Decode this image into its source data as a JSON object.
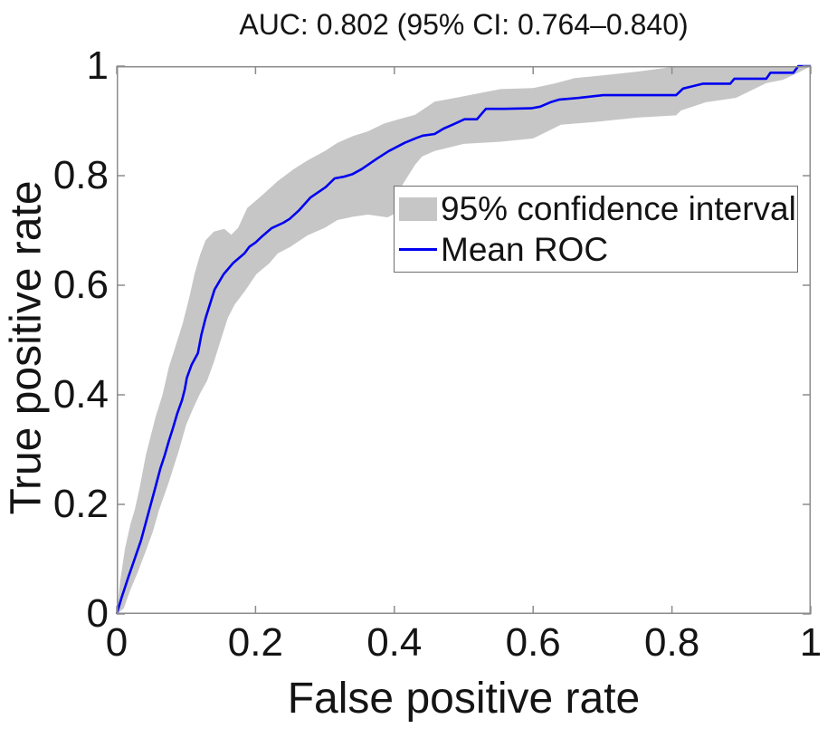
{
  "colors": {
    "band": "#c6c6c6",
    "mean_line": "#0000f0",
    "axis": "#8c8c8c",
    "text": "#141414",
    "legend_border": "#6e6e6e",
    "background": "#ffffff"
  },
  "legend": {
    "position": "upper-center-right-inside",
    "items": [
      {
        "label": "95% confidence interval",
        "swatch": "band"
      },
      {
        "label": "Mean ROC",
        "swatch": "line"
      }
    ]
  },
  "chart_data": {
    "type": "line",
    "title": "AUC: 0.802 (95% CI: 0.764–0.840)",
    "auc": 0.802,
    "ci95": [
      0.764,
      0.84
    ],
    "xlabel": "False positive rate",
    "ylabel": "True positive rate",
    "xlim": [
      0,
      1
    ],
    "ylim": [
      0,
      1
    ],
    "xticks": [
      0,
      0.2,
      0.4,
      0.6,
      0.8,
      1
    ],
    "yticks": [
      0,
      0.2,
      0.4,
      0.6,
      0.8,
      1
    ],
    "xtick_labels": [
      "0",
      "0.2",
      "0.4",
      "0.6",
      "0.8",
      "1"
    ],
    "ytick_labels": [
      "0",
      "0.2",
      "0.4",
      "0.6",
      "0.8",
      "1"
    ],
    "grid": false,
    "box": true,
    "series": [
      {
        "name": "95% confidence interval",
        "type": "band",
        "color": "#c6c6c6",
        "upper": [
          [
            0,
            0
          ],
          [
            0.005,
            0.06
          ],
          [
            0.012,
            0.12
          ],
          [
            0.02,
            0.165
          ],
          [
            0.026,
            0.19
          ],
          [
            0.033,
            0.23
          ],
          [
            0.042,
            0.29
          ],
          [
            0.05,
            0.33
          ],
          [
            0.056,
            0.36
          ],
          [
            0.066,
            0.4
          ],
          [
            0.075,
            0.45
          ],
          [
            0.085,
            0.49
          ],
          [
            0.095,
            0.53
          ],
          [
            0.105,
            0.58
          ],
          [
            0.112,
            0.62
          ],
          [
            0.12,
            0.655
          ],
          [
            0.128,
            0.682
          ],
          [
            0.14,
            0.698
          ],
          [
            0.155,
            0.703
          ],
          [
            0.165,
            0.692
          ],
          [
            0.175,
            0.705
          ],
          [
            0.188,
            0.741
          ],
          [
            0.21,
            0.765
          ],
          [
            0.232,
            0.79
          ],
          [
            0.255,
            0.812
          ],
          [
            0.275,
            0.828
          ],
          [
            0.3,
            0.845
          ],
          [
            0.318,
            0.86
          ],
          [
            0.34,
            0.872
          ],
          [
            0.362,
            0.881
          ],
          [
            0.385,
            0.895
          ],
          [
            0.406,
            0.903
          ],
          [
            0.43,
            0.911
          ],
          [
            0.458,
            0.935
          ],
          [
            0.5,
            0.945
          ],
          [
            0.553,
            0.958
          ],
          [
            0.6,
            0.96
          ],
          [
            0.63,
            0.968
          ],
          [
            0.66,
            0.978
          ],
          [
            0.7,
            0.983
          ],
          [
            0.75,
            0.99
          ],
          [
            0.81,
            1
          ],
          [
            1,
            1
          ]
        ],
        "lower": [
          [
            0,
            0
          ],
          [
            0.01,
            0.01
          ],
          [
            0.02,
            0.045
          ],
          [
            0.03,
            0.075
          ],
          [
            0.042,
            0.115
          ],
          [
            0.052,
            0.15
          ],
          [
            0.061,
            0.19
          ],
          [
            0.075,
            0.24
          ],
          [
            0.09,
            0.3
          ],
          [
            0.1,
            0.345
          ],
          [
            0.11,
            0.375
          ],
          [
            0.12,
            0.402
          ],
          [
            0.13,
            0.425
          ],
          [
            0.14,
            0.46
          ],
          [
            0.15,
            0.5
          ],
          [
            0.16,
            0.54
          ],
          [
            0.17,
            0.565
          ],
          [
            0.185,
            0.59
          ],
          [
            0.201,
            0.62
          ],
          [
            0.22,
            0.64
          ],
          [
            0.232,
            0.658
          ],
          [
            0.25,
            0.67
          ],
          [
            0.275,
            0.691
          ],
          [
            0.3,
            0.705
          ],
          [
            0.318,
            0.719
          ],
          [
            0.34,
            0.725
          ],
          [
            0.362,
            0.729
          ],
          [
            0.39,
            0.724
          ],
          [
            0.4,
            0.73
          ],
          [
            0.41,
            0.78
          ],
          [
            0.43,
            0.82
          ],
          [
            0.44,
            0.835
          ],
          [
            0.458,
            0.845
          ],
          [
            0.5,
            0.858
          ],
          [
            0.553,
            0.862
          ],
          [
            0.6,
            0.868
          ],
          [
            0.64,
            0.893
          ],
          [
            0.688,
            0.898
          ],
          [
            0.75,
            0.906
          ],
          [
            0.806,
            0.91
          ],
          [
            0.813,
            0.919
          ],
          [
            0.849,
            0.934
          ],
          [
            0.892,
            0.942
          ],
          [
            0.936,
            0.969
          ],
          [
            0.96,
            0.975
          ],
          [
            0.982,
            0.988
          ],
          [
            1,
            1
          ]
        ]
      },
      {
        "name": "Mean ROC",
        "type": "line",
        "color": "#0000f0",
        "points": [
          [
            0,
            0
          ],
          [
            0.007,
            0.03
          ],
          [
            0.017,
            0.068
          ],
          [
            0.026,
            0.101
          ],
          [
            0.035,
            0.134
          ],
          [
            0.042,
            0.167
          ],
          [
            0.048,
            0.195
          ],
          [
            0.055,
            0.228
          ],
          [
            0.063,
            0.266
          ],
          [
            0.069,
            0.289
          ],
          [
            0.075,
            0.315
          ],
          [
            0.081,
            0.339
          ],
          [
            0.087,
            0.365
          ],
          [
            0.094,
            0.39
          ],
          [
            0.098,
            0.41
          ],
          [
            0.101,
            0.431
          ],
          [
            0.108,
            0.455
          ],
          [
            0.117,
            0.476
          ],
          [
            0.122,
            0.51
          ],
          [
            0.128,
            0.54
          ],
          [
            0.133,
            0.56
          ],
          [
            0.141,
            0.592
          ],
          [
            0.154,
            0.62
          ],
          [
            0.168,
            0.641
          ],
          [
            0.184,
            0.658
          ],
          [
            0.191,
            0.67
          ],
          [
            0.2,
            0.678
          ],
          [
            0.21,
            0.69
          ],
          [
            0.223,
            0.704
          ],
          [
            0.24,
            0.714
          ],
          [
            0.249,
            0.721
          ],
          [
            0.262,
            0.736
          ],
          [
            0.279,
            0.76
          ],
          [
            0.301,
            0.779
          ],
          [
            0.314,
            0.795
          ],
          [
            0.327,
            0.798
          ],
          [
            0.34,
            0.803
          ],
          [
            0.353,
            0.812
          ],
          [
            0.375,
            0.831
          ],
          [
            0.392,
            0.845
          ],
          [
            0.415,
            0.86
          ],
          [
            0.432,
            0.869
          ],
          [
            0.441,
            0.873
          ],
          [
            0.458,
            0.876
          ],
          [
            0.471,
            0.886
          ],
          [
            0.484,
            0.893
          ],
          [
            0.501,
            0.903
          ],
          [
            0.519,
            0.903
          ],
          [
            0.532,
            0.922
          ],
          [
            0.558,
            0.922
          ],
          [
            0.597,
            0.923
          ],
          [
            0.61,
            0.926
          ],
          [
            0.625,
            0.934
          ],
          [
            0.638,
            0.939
          ],
          [
            0.666,
            0.942
          ],
          [
            0.701,
            0.947
          ],
          [
            0.806,
            0.947
          ],
          [
            0.816,
            0.959
          ],
          [
            0.845,
            0.968
          ],
          [
            0.884,
            0.968
          ],
          [
            0.89,
            0.977
          ],
          [
            0.936,
            0.977
          ],
          [
            0.942,
            0.988
          ],
          [
            0.975,
            0.988
          ],
          [
            0.982,
            1
          ],
          [
            1,
            1
          ]
        ]
      }
    ]
  }
}
